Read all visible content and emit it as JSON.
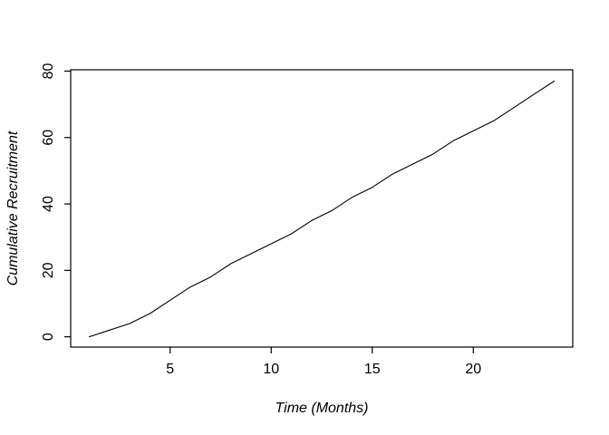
{
  "window": {
    "background": "#ffffff"
  },
  "chart_data": {
    "type": "line",
    "title": "",
    "xlabel": "Time (Months)",
    "ylabel": "Cumulative Recruitment",
    "x": [
      1,
      2,
      3,
      4,
      5,
      6,
      7,
      8,
      9,
      10,
      11,
      12,
      13,
      14,
      15,
      16,
      17,
      18,
      19,
      20,
      21,
      22,
      23,
      24
    ],
    "y": [
      0,
      2,
      4,
      7,
      11,
      15,
      18,
      22,
      25,
      28,
      31,
      35,
      38,
      42,
      45,
      49,
      52,
      55,
      59,
      62,
      65,
      69,
      73,
      77
    ],
    "x_ticks": [
      5,
      10,
      15,
      20
    ],
    "y_ticks": [
      0,
      20,
      40,
      60,
      80
    ],
    "xlim": [
      0.08,
      24.92
    ],
    "ylim": [
      -3.1,
      80.4
    ],
    "grid": false,
    "legend": null,
    "line_color": "#000000",
    "axis_color": "#000000",
    "background": "#ffffff"
  }
}
